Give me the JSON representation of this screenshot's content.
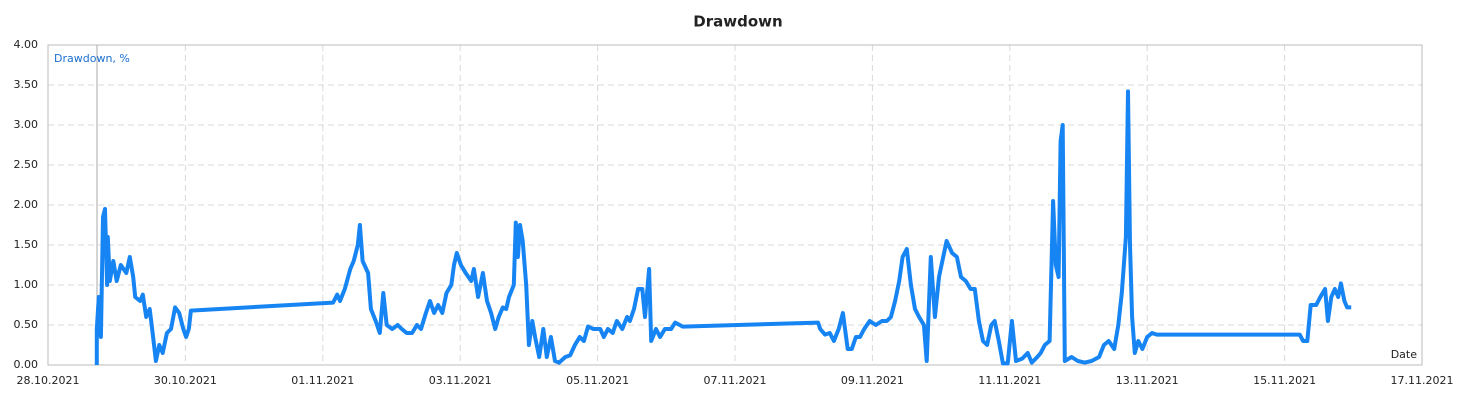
{
  "chart_data": {
    "type": "line",
    "title": "Drawdown",
    "y_label": "Drawdown, %",
    "x_label": "Date",
    "xlim": [
      0,
      20
    ],
    "xticks": [
      {
        "value": 0,
        "label": "28.10.2021"
      },
      {
        "value": 2,
        "label": "30.10.2021"
      },
      {
        "value": 4,
        "label": "01.11.2021"
      },
      {
        "value": 6,
        "label": "03.11.2021"
      },
      {
        "value": 8,
        "label": "05.11.2021"
      },
      {
        "value": 10,
        "label": "07.11.2021"
      },
      {
        "value": 12,
        "label": "09.11.2021"
      },
      {
        "value": 14,
        "label": "11.11.2021"
      },
      {
        "value": 16,
        "label": "13.11.2021"
      },
      {
        "value": 18,
        "label": "15.11.2021"
      },
      {
        "value": 20,
        "label": "17.11.2021"
      }
    ],
    "ylim": [
      0,
      4
    ],
    "yticks": [
      {
        "value": 0,
        "label": "0.00"
      },
      {
        "value": 0.5,
        "label": "0.50"
      },
      {
        "value": 1,
        "label": "1.00"
      },
      {
        "value": 1.5,
        "label": "1.50"
      },
      {
        "value": 2,
        "label": "2.00"
      },
      {
        "value": 2.5,
        "label": "2.50"
      },
      {
        "value": 3,
        "label": "3.00"
      },
      {
        "value": 3.5,
        "label": "3.50"
      },
      {
        "value": 4,
        "label": "4.00"
      }
    ],
    "grid": true,
    "series": [
      {
        "color": "#1684f2",
        "x": [
          0.71,
          0.71,
          0.74,
          0.77,
          0.8,
          0.83,
          0.86,
          0.87,
          0.9,
          0.95,
          1.0,
          1.06,
          1.14,
          1.19,
          1.24,
          1.27,
          1.34,
          1.38,
          1.43,
          1.48,
          1.53,
          1.57,
          1.62,
          1.67,
          1.73,
          1.79,
          1.85,
          1.91,
          1.97,
          2.01,
          2.05,
          2.08,
          4.15,
          4.21,
          4.25,
          4.32,
          4.4,
          4.45,
          4.51,
          4.54,
          4.58,
          4.66,
          4.7,
          4.77,
          4.83,
          4.88,
          4.93,
          5.01,
          5.09,
          5.15,
          5.22,
          5.3,
          5.37,
          5.43,
          5.5,
          5.56,
          5.62,
          5.68,
          5.74,
          5.8,
          5.87,
          5.91,
          5.95,
          6.01,
          6.08,
          6.16,
          6.2,
          6.26,
          6.33,
          6.39,
          6.45,
          6.51,
          6.56,
          6.62,
          6.67,
          6.71,
          6.78,
          6.81,
          6.84,
          6.87,
          6.91,
          6.96,
          7.0,
          7.05,
          7.09,
          7.15,
          7.21,
          7.26,
          7.32,
          7.38,
          7.44,
          7.53,
          7.6,
          7.67,
          7.74,
          7.8,
          7.86,
          7.94,
          8.04,
          8.09,
          8.15,
          8.22,
          8.28,
          8.36,
          8.43,
          8.47,
          8.53,
          8.59,
          8.65,
          8.69,
          8.75,
          8.78,
          8.85,
          8.91,
          8.98,
          9.07,
          9.13,
          9.24,
          11.21,
          11.24,
          11.31,
          11.38,
          11.44,
          11.51,
          11.57,
          11.64,
          11.7,
          11.76,
          11.82,
          11.88,
          11.96,
          12.05,
          12.14,
          12.21,
          12.27,
          12.33,
          12.39,
          12.44,
          12.5,
          12.56,
          12.62,
          12.68,
          12.75,
          12.79,
          12.85,
          12.91,
          12.97,
          13.03,
          13.08,
          13.16,
          13.23,
          13.29,
          13.36,
          13.43,
          13.49,
          13.55,
          13.61,
          13.67,
          13.73,
          13.78,
          13.84,
          13.9,
          13.97,
          14.03,
          14.09,
          14.18,
          14.26,
          14.32,
          14.4,
          14.45,
          14.51,
          14.58,
          14.63,
          14.67,
          14.71,
          14.74,
          14.77,
          14.8,
          14.9,
          14.99,
          15.09,
          15.19,
          15.3,
          15.37,
          15.44,
          15.52,
          15.58,
          15.63,
          15.69,
          15.72,
          15.75,
          15.78,
          15.82,
          15.87,
          15.93,
          16.0,
          16.07,
          16.14,
          18.22,
          18.27,
          18.33,
          18.38,
          18.46,
          18.52,
          18.59,
          18.63,
          18.68,
          18.73,
          18.78,
          18.82,
          18.87,
          18.91,
          18.97
        ],
        "values": [
          0,
          0.45,
          0.85,
          0.35,
          1.85,
          1.95,
          1.0,
          1.6,
          1.05,
          1.3,
          1.05,
          1.25,
          1.15,
          1.35,
          1.1,
          0.85,
          0.8,
          0.88,
          0.6,
          0.7,
          0.35,
          0.05,
          0.25,
          0.15,
          0.4,
          0.45,
          0.72,
          0.65,
          0.45,
          0.35,
          0.45,
          0.68,
          0.78,
          0.88,
          0.8,
          0.95,
          1.2,
          1.3,
          1.5,
          1.75,
          1.3,
          1.15,
          0.7,
          0.55,
          0.4,
          0.9,
          0.5,
          0.45,
          0.5,
          0.45,
          0.4,
          0.4,
          0.5,
          0.45,
          0.65,
          0.8,
          0.65,
          0.75,
          0.65,
          0.9,
          1.0,
          1.25,
          1.4,
          1.25,
          1.15,
          1.05,
          1.2,
          0.85,
          1.15,
          0.8,
          0.65,
          0.45,
          0.6,
          0.72,
          0.7,
          0.85,
          1.0,
          1.78,
          1.35,
          1.75,
          1.55,
          1.0,
          0.25,
          0.55,
          0.35,
          0.1,
          0.45,
          0.1,
          0.35,
          0.05,
          0.03,
          0.1,
          0.12,
          0.25,
          0.35,
          0.3,
          0.48,
          0.45,
          0.45,
          0.35,
          0.45,
          0.4,
          0.55,
          0.45,
          0.6,
          0.55,
          0.7,
          0.95,
          0.95,
          0.6,
          1.2,
          0.3,
          0.45,
          0.35,
          0.45,
          0.45,
          0.53,
          0.48,
          0.53,
          0.45,
          0.38,
          0.4,
          0.3,
          0.45,
          0.65,
          0.2,
          0.2,
          0.35,
          0.35,
          0.45,
          0.55,
          0.5,
          0.55,
          0.55,
          0.6,
          0.8,
          1.05,
          1.35,
          1.45,
          1.0,
          0.7,
          0.6,
          0.5,
          0.05,
          1.35,
          0.6,
          1.1,
          1.35,
          1.55,
          1.4,
          1.35,
          1.1,
          1.05,
          0.95,
          0.95,
          0.55,
          0.3,
          0.25,
          0.5,
          0.55,
          0.3,
          0.02,
          0.02,
          0.55,
          0.05,
          0.08,
          0.15,
          0.03,
          0.1,
          0.15,
          0.25,
          0.3,
          2.05,
          1.25,
          1.1,
          2.8,
          3.0,
          0.05,
          0.1,
          0.05,
          0.03,
          0.05,
          0.1,
          0.25,
          0.3,
          0.2,
          0.5,
          0.9,
          1.6,
          3.42,
          1.5,
          0.6,
          0.15,
          0.3,
          0.2,
          0.35,
          0.4,
          0.38,
          0.38,
          0.3,
          0.3,
          0.75,
          0.75,
          0.85,
          0.95,
          0.55,
          0.85,
          0.95,
          0.85,
          1.02,
          0.8,
          0.72,
          0.72
        ]
      }
    ]
  }
}
